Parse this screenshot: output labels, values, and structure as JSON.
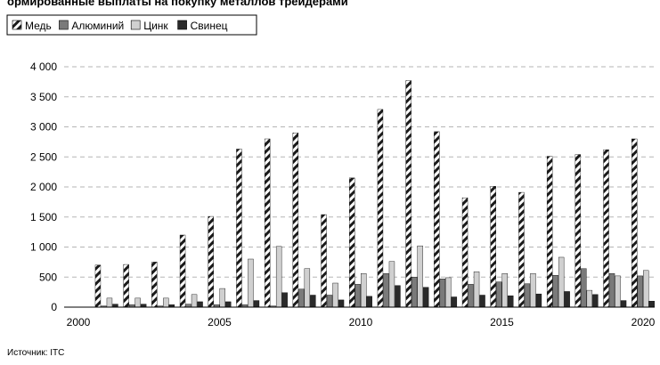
{
  "title_fragment": "ормированные выплаты на покупку металлов трейдерами",
  "source": "Источник: ITC",
  "chart_data": {
    "type": "bar",
    "x": [
      2000,
      2001,
      2002,
      2003,
      2004,
      2005,
      2006,
      2007,
      2008,
      2009,
      2010,
      2011,
      2012,
      2013,
      2014,
      2015,
      2016,
      2017,
      2018,
      2019,
      2020
    ],
    "x_tick_labels": [
      "2000",
      "2005",
      "2010",
      "2015",
      "2020"
    ],
    "y_tick_labels": [
      "0",
      "500",
      "1 000",
      "1 500",
      "2 000",
      "2 500",
      "3 000",
      "3 500",
      "4 000"
    ],
    "ylim": [
      0,
      4000
    ],
    "grid": true,
    "legend_position": "top-left",
    "series": [
      {
        "name": "Медь",
        "pattern": "hatch",
        "color": "#1a1a1a",
        "values": [
          null,
          700,
          710,
          750,
          1200,
          1510,
          2630,
          2800,
          2900,
          1540,
          2150,
          3290,
          3770,
          2920,
          1820,
          2010,
          1910,
          2510,
          2540,
          2620,
          2800
        ]
      },
      {
        "name": "Алюминий",
        "pattern": "solid",
        "color": "#7a7a7a",
        "values": [
          null,
          20,
          40,
          20,
          50,
          40,
          40,
          20,
          300,
          200,
          380,
          560,
          500,
          470,
          380,
          420,
          390,
          530,
          640,
          560,
          520
        ]
      },
      {
        "name": "Цинк",
        "pattern": "solid",
        "color": "#d0d0d0",
        "values": [
          null,
          150,
          150,
          150,
          210,
          310,
          800,
          1010,
          640,
          400,
          560,
          760,
          1020,
          490,
          590,
          560,
          560,
          830,
          280,
          520,
          610
        ]
      },
      {
        "name": "Свинец",
        "pattern": "solid",
        "color": "#2a2a2a",
        "values": [
          null,
          50,
          50,
          40,
          90,
          90,
          110,
          240,
          200,
          120,
          180,
          360,
          330,
          170,
          200,
          190,
          220,
          260,
          210,
          110,
          100
        ]
      }
    ]
  }
}
